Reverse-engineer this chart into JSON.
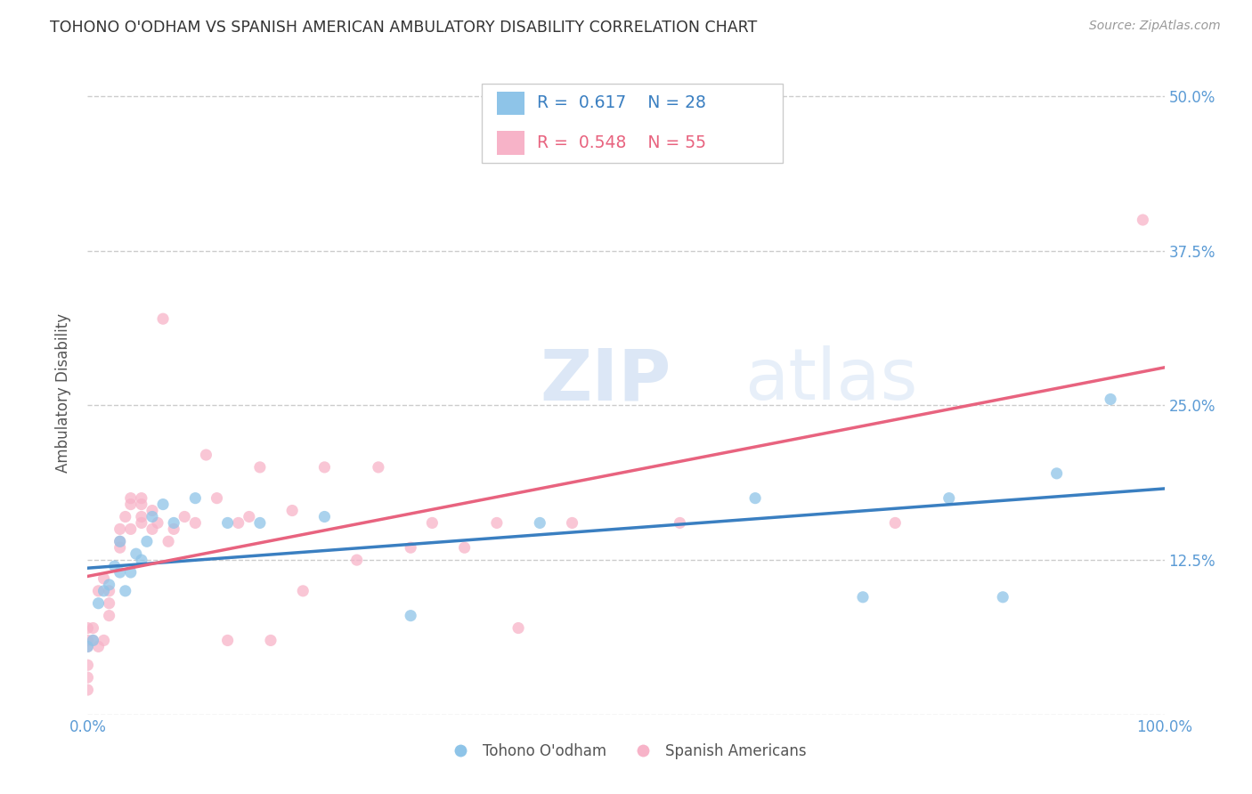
{
  "title": "TOHONO O'ODHAM VS SPANISH AMERICAN AMBULATORY DISABILITY CORRELATION CHART",
  "source": "Source: ZipAtlas.com",
  "ylabel": "Ambulatory Disability",
  "watermark_zip": "ZIP",
  "watermark_atlas": "atlas",
  "xlim": [
    0.0,
    1.0
  ],
  "ylim": [
    0.0,
    0.52
  ],
  "xticks": [
    0.0,
    0.25,
    0.5,
    0.75,
    1.0
  ],
  "xticklabels": [
    "0.0%",
    "",
    "",
    "",
    "100.0%"
  ],
  "yticks": [
    0.0,
    0.125,
    0.25,
    0.375,
    0.5
  ],
  "yticklabels": [
    "",
    "12.5%",
    "25.0%",
    "37.5%",
    "50.0%"
  ],
  "legend_labels": [
    "Tohono O'odham",
    "Spanish Americans"
  ],
  "blue_color": "#8ec4e8",
  "pink_color": "#f7b3c8",
  "blue_line_color": "#3a7fc1",
  "pink_line_color": "#e8637f",
  "R_blue": 0.617,
  "N_blue": 28,
  "R_pink": 0.548,
  "N_pink": 55,
  "tohono_x": [
    0.0,
    0.005,
    0.01,
    0.015,
    0.02,
    0.025,
    0.03,
    0.03,
    0.035,
    0.04,
    0.045,
    0.05,
    0.055,
    0.06,
    0.07,
    0.08,
    0.1,
    0.13,
    0.16,
    0.22,
    0.3,
    0.42,
    0.62,
    0.72,
    0.8,
    0.85,
    0.9,
    0.95
  ],
  "tohono_y": [
    0.055,
    0.06,
    0.09,
    0.1,
    0.105,
    0.12,
    0.115,
    0.14,
    0.1,
    0.115,
    0.13,
    0.125,
    0.14,
    0.16,
    0.17,
    0.155,
    0.175,
    0.155,
    0.155,
    0.16,
    0.08,
    0.155,
    0.175,
    0.095,
    0.175,
    0.095,
    0.195,
    0.255
  ],
  "spanish_x": [
    0.0,
    0.0,
    0.0,
    0.0,
    0.0,
    0.0,
    0.005,
    0.005,
    0.01,
    0.01,
    0.015,
    0.015,
    0.02,
    0.02,
    0.02,
    0.03,
    0.03,
    0.03,
    0.035,
    0.04,
    0.04,
    0.04,
    0.05,
    0.05,
    0.05,
    0.05,
    0.06,
    0.06,
    0.065,
    0.07,
    0.075,
    0.08,
    0.09,
    0.1,
    0.11,
    0.12,
    0.13,
    0.14,
    0.15,
    0.16,
    0.17,
    0.19,
    0.2,
    0.22,
    0.25,
    0.27,
    0.3,
    0.32,
    0.35,
    0.38,
    0.4,
    0.45,
    0.55,
    0.75,
    0.98
  ],
  "spanish_y": [
    0.055,
    0.06,
    0.07,
    0.04,
    0.03,
    0.02,
    0.07,
    0.06,
    0.1,
    0.055,
    0.11,
    0.06,
    0.1,
    0.09,
    0.08,
    0.14,
    0.15,
    0.135,
    0.16,
    0.17,
    0.15,
    0.175,
    0.16,
    0.17,
    0.155,
    0.175,
    0.15,
    0.165,
    0.155,
    0.32,
    0.14,
    0.15,
    0.16,
    0.155,
    0.21,
    0.175,
    0.06,
    0.155,
    0.16,
    0.2,
    0.06,
    0.165,
    0.1,
    0.2,
    0.125,
    0.2,
    0.135,
    0.155,
    0.135,
    0.155,
    0.07,
    0.155,
    0.155,
    0.155,
    0.4
  ],
  "background_color": "#ffffff",
  "grid_color": "#cccccc",
  "title_color": "#333333",
  "axis_label_color": "#555555",
  "tick_color": "#5b9bd5",
  "marker_size": 90
}
